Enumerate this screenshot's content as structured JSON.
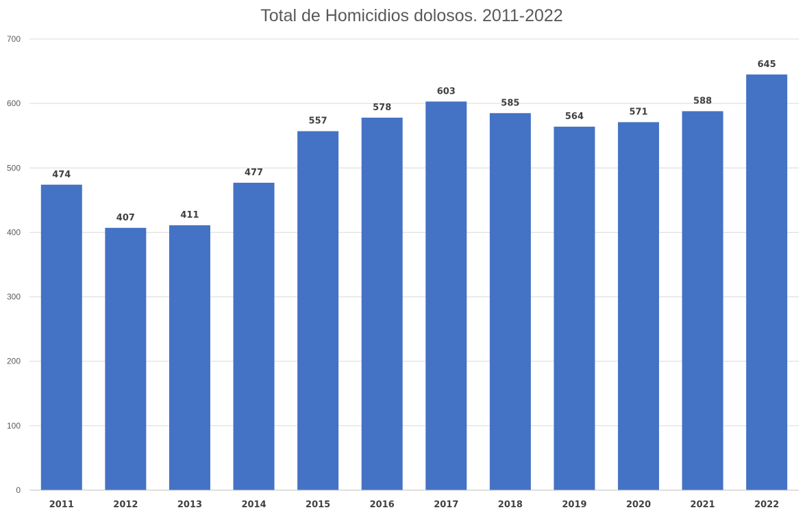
{
  "chart_data": {
    "type": "bar",
    "title": "Total de Homicidios dolosos. 2011-2022",
    "categories": [
      "2011",
      "2012",
      "2013",
      "2014",
      "2015",
      "2016",
      "2017",
      "2018",
      "2019",
      "2020",
      "2021",
      "2022"
    ],
    "values": [
      474,
      407,
      411,
      477,
      557,
      578,
      603,
      585,
      564,
      571,
      588,
      645
    ],
    "ylim": [
      0,
      700
    ],
    "yticks": [
      0,
      100,
      200,
      300,
      400,
      500,
      600,
      700
    ],
    "xlabel": "",
    "ylabel": "",
    "grid": true,
    "legend": "none",
    "bar_color": "#4472C4"
  }
}
